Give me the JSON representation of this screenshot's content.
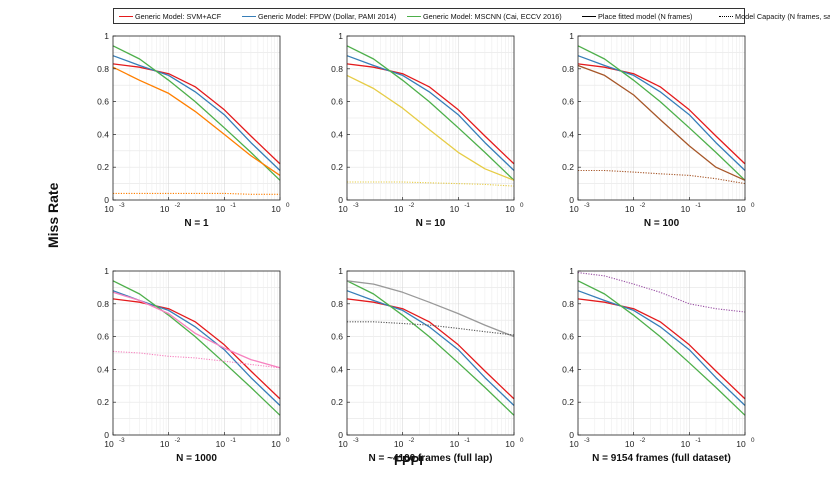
{
  "figure": {
    "ylabel": "Miss Rate",
    "xlabel": "FPPI"
  },
  "legend": [
    {
      "label": "Generic Model: SVM+ACF",
      "color": "#e41a1c",
      "style": "solid"
    },
    {
      "label": "Generic Model: FPDW (Dollar, PAMI 2014)",
      "color": "#377eb8",
      "style": "solid"
    },
    {
      "label": "Generic Model: MSCNN (Cai, ECCV 2016)",
      "color": "#4daf4a",
      "style": "solid"
    },
    {
      "label": "Place fitted model (N frames)",
      "color": "#000000",
      "style": "solid"
    },
    {
      "label": "Model Capacity (N frames, same lap)",
      "color": "#000000",
      "style": "dotted"
    }
  ],
  "y_ticks": [
    "0",
    "0.2",
    "0.4",
    "0.6",
    "0.8",
    "1"
  ],
  "x_ticks": [
    {
      "base": "10",
      "exp": "-3"
    },
    {
      "base": "10",
      "exp": "-2"
    },
    {
      "base": "10",
      "exp": "-1"
    },
    {
      "base": "10",
      "exp": "0"
    }
  ],
  "chart_data": [
    {
      "type": "line",
      "title": "N = 1",
      "xscale": "log",
      "xlim": [
        0.001,
        1
      ],
      "ylim": [
        0,
        1
      ],
      "x": [
        0.001,
        0.003,
        0.01,
        0.03,
        0.1,
        0.3,
        1
      ],
      "series": [
        {
          "name": "Generic Model: SVM+ACF",
          "color": "#e41a1c",
          "style": "solid",
          "values": [
            0.83,
            0.81,
            0.77,
            0.69,
            0.55,
            0.39,
            0.22
          ]
        },
        {
          "name": "Generic Model: FPDW (Dollar, PAMI 2014)",
          "color": "#377eb8",
          "style": "solid",
          "values": [
            0.88,
            0.82,
            0.76,
            0.66,
            0.52,
            0.35,
            0.18
          ]
        },
        {
          "name": "Generic Model: MSCNN (Cai, ECCV 2016)",
          "color": "#4daf4a",
          "style": "solid",
          "values": [
            0.94,
            0.86,
            0.73,
            0.6,
            0.44,
            0.29,
            0.12
          ]
        },
        {
          "name": "Place fitted model (N frames)",
          "color": "#ff7f00",
          "style": "solid",
          "values": [
            0.81,
            0.73,
            0.65,
            0.54,
            0.4,
            0.27,
            0.15
          ]
        },
        {
          "name": "Model Capacity (N frames, same lap)",
          "color": "#ff7f00",
          "style": "dotted",
          "values": [
            0.04,
            0.04,
            0.04,
            0.04,
            0.04,
            0.035,
            0.035
          ]
        }
      ]
    },
    {
      "type": "line",
      "title": "N = 10",
      "xscale": "log",
      "xlim": [
        0.001,
        1
      ],
      "ylim": [
        0,
        1
      ],
      "x": [
        0.001,
        0.003,
        0.01,
        0.03,
        0.1,
        0.3,
        1
      ],
      "series": [
        {
          "name": "Generic Model: SVM+ACF",
          "color": "#e41a1c",
          "style": "solid",
          "values": [
            0.83,
            0.81,
            0.77,
            0.69,
            0.55,
            0.39,
            0.22
          ]
        },
        {
          "name": "Generic Model: FPDW (Dollar, PAMI 2014)",
          "color": "#377eb8",
          "style": "solid",
          "values": [
            0.88,
            0.82,
            0.76,
            0.66,
            0.52,
            0.35,
            0.18
          ]
        },
        {
          "name": "Generic Model: MSCNN (Cai, ECCV 2016)",
          "color": "#4daf4a",
          "style": "solid",
          "values": [
            0.94,
            0.86,
            0.73,
            0.6,
            0.44,
            0.29,
            0.12
          ]
        },
        {
          "name": "Place fitted model (N frames)",
          "color": "#e6cc45",
          "style": "solid",
          "values": [
            0.76,
            0.68,
            0.56,
            0.43,
            0.29,
            0.19,
            0.12
          ]
        },
        {
          "name": "Model Capacity (N frames, same lap)",
          "color": "#e6cc45",
          "style": "dotted",
          "values": [
            0.11,
            0.11,
            0.11,
            0.105,
            0.1,
            0.095,
            0.085
          ]
        }
      ]
    },
    {
      "type": "line",
      "title": "N = 100",
      "xscale": "log",
      "xlim": [
        0.001,
        1
      ],
      "ylim": [
        0,
        1
      ],
      "x": [
        0.001,
        0.003,
        0.01,
        0.03,
        0.1,
        0.3,
        1
      ],
      "series": [
        {
          "name": "Generic Model: SVM+ACF",
          "color": "#e41a1c",
          "style": "solid",
          "values": [
            0.83,
            0.81,
            0.77,
            0.69,
            0.55,
            0.39,
            0.22
          ]
        },
        {
          "name": "Generic Model: FPDW (Dollar, PAMI 2014)",
          "color": "#377eb8",
          "style": "solid",
          "values": [
            0.88,
            0.82,
            0.76,
            0.66,
            0.52,
            0.35,
            0.18
          ]
        },
        {
          "name": "Generic Model: MSCNN (Cai, ECCV 2016)",
          "color": "#4daf4a",
          "style": "solid",
          "values": [
            0.94,
            0.86,
            0.73,
            0.6,
            0.44,
            0.29,
            0.12
          ]
        },
        {
          "name": "Place fitted model (N frames)",
          "color": "#a65628",
          "style": "solid",
          "values": [
            0.82,
            0.76,
            0.64,
            0.49,
            0.33,
            0.2,
            0.12
          ]
        },
        {
          "name": "Model Capacity (N frames, same lap)",
          "color": "#a65628",
          "style": "dotted",
          "values": [
            0.18,
            0.18,
            0.17,
            0.16,
            0.15,
            0.13,
            0.1
          ]
        }
      ]
    },
    {
      "type": "line",
      "title": "N = 1000",
      "xscale": "log",
      "xlim": [
        0.001,
        1
      ],
      "ylim": [
        0,
        1
      ],
      "x": [
        0.001,
        0.003,
        0.01,
        0.03,
        0.1,
        0.3,
        1
      ],
      "series": [
        {
          "name": "Generic Model: SVM+ACF",
          "color": "#e41a1c",
          "style": "solid",
          "values": [
            0.83,
            0.81,
            0.77,
            0.69,
            0.55,
            0.39,
            0.22
          ]
        },
        {
          "name": "Generic Model: FPDW (Dollar, PAMI 2014)",
          "color": "#377eb8",
          "style": "solid",
          "values": [
            0.88,
            0.82,
            0.76,
            0.66,
            0.52,
            0.35,
            0.18
          ]
        },
        {
          "name": "Generic Model: MSCNN (Cai, ECCV 2016)",
          "color": "#4daf4a",
          "style": "solid",
          "values": [
            0.94,
            0.86,
            0.73,
            0.6,
            0.44,
            0.29,
            0.12
          ]
        },
        {
          "name": "Place fitted model (N frames)",
          "color": "#f781bf",
          "style": "solid",
          "values": [
            0.87,
            0.82,
            0.74,
            0.62,
            0.53,
            0.46,
            0.41
          ]
        },
        {
          "name": "Model Capacity (N frames, same lap)",
          "color": "#f781bf",
          "style": "dotted",
          "values": [
            0.51,
            0.5,
            0.48,
            0.47,
            0.45,
            0.43,
            0.41
          ]
        }
      ]
    },
    {
      "type": "line",
      "title": "N = ~4100 frames (full lap)",
      "xscale": "log",
      "xlim": [
        0.001,
        1
      ],
      "ylim": [
        0,
        1
      ],
      "x": [
        0.001,
        0.003,
        0.01,
        0.03,
        0.1,
        0.3,
        1
      ],
      "series": [
        {
          "name": "Generic Model: SVM+ACF",
          "color": "#e41a1c",
          "style": "solid",
          "values": [
            0.83,
            0.81,
            0.77,
            0.69,
            0.55,
            0.39,
            0.22
          ]
        },
        {
          "name": "Generic Model: FPDW (Dollar, PAMI 2014)",
          "color": "#377eb8",
          "style": "solid",
          "values": [
            0.88,
            0.82,
            0.76,
            0.66,
            0.52,
            0.35,
            0.18
          ]
        },
        {
          "name": "Generic Model: MSCNN (Cai, ECCV 2016)",
          "color": "#4daf4a",
          "style": "solid",
          "values": [
            0.94,
            0.86,
            0.73,
            0.6,
            0.44,
            0.29,
            0.12
          ]
        },
        {
          "name": "Place fitted model (N frames)",
          "color": "#999999",
          "style": "solid",
          "values": [
            0.94,
            0.92,
            0.87,
            0.81,
            0.74,
            0.67,
            0.6
          ]
        },
        {
          "name": "Model Capacity (N frames, same lap)",
          "color": "#555555",
          "style": "dotted",
          "values": [
            0.69,
            0.69,
            0.68,
            0.67,
            0.65,
            0.63,
            0.61
          ]
        }
      ]
    },
    {
      "type": "line",
      "title": "N = 9154 frames (full dataset)",
      "xscale": "log",
      "xlim": [
        0.001,
        1
      ],
      "ylim": [
        0,
        1
      ],
      "x": [
        0.001,
        0.003,
        0.01,
        0.03,
        0.1,
        0.3,
        1
      ],
      "series": [
        {
          "name": "Generic Model: SVM+ACF",
          "color": "#e41a1c",
          "style": "solid",
          "values": [
            0.83,
            0.81,
            0.77,
            0.69,
            0.55,
            0.39,
            0.22
          ]
        },
        {
          "name": "Generic Model: FPDW (Dollar, PAMI 2014)",
          "color": "#377eb8",
          "style": "solid",
          "values": [
            0.88,
            0.82,
            0.76,
            0.66,
            0.52,
            0.35,
            0.18
          ]
        },
        {
          "name": "Generic Model: MSCNN (Cai, ECCV 2016)",
          "color": "#4daf4a",
          "style": "solid",
          "values": [
            0.94,
            0.86,
            0.73,
            0.6,
            0.44,
            0.29,
            0.12
          ]
        },
        {
          "name": "Place fitted model (N frames)",
          "color": "#984ea3",
          "style": "dotted",
          "values": [
            0.99,
            0.97,
            0.92,
            0.87,
            0.8,
            0.77,
            0.75
          ]
        }
      ]
    }
  ]
}
